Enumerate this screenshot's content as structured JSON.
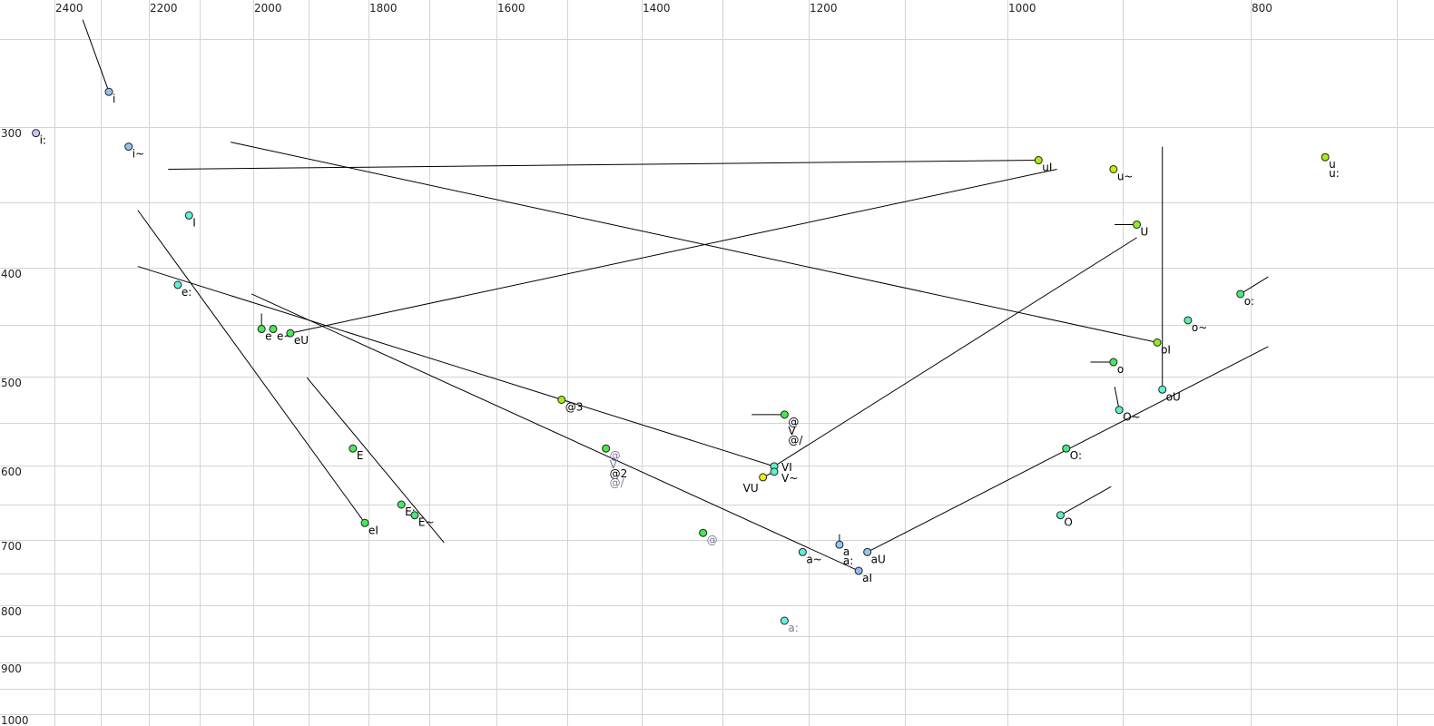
{
  "chart_data": {
    "type": "scatter",
    "title": "",
    "xlabel": "",
    "ylabel": "",
    "x_reversed": true,
    "y_reversed": true,
    "x_scale": "nonlinear (perceptual)",
    "grid": true,
    "xlim": [
      2450,
      690
    ],
    "ylim": [
      230,
      1010
    ],
    "x_ticks": [
      2400,
      2200,
      2000,
      1800,
      1600,
      1400,
      1200,
      1000,
      800
    ],
    "x_tick_labels": [
      "2400",
      "2200",
      "2000",
      "1800",
      "1600",
      "1400",
      "1200",
      "1000",
      "800"
    ],
    "x_grid": [
      2400,
      2300,
      2200,
      2100,
      2000,
      1900,
      1800,
      1700,
      1600,
      1500,
      1400,
      1300,
      1200,
      1100,
      1000,
      900,
      800,
      700
    ],
    "y_ticks": [
      300,
      400,
      500,
      600,
      700,
      800,
      900,
      1000
    ],
    "y_tick_labels": [
      "300",
      "400",
      "500",
      "600",
      "700",
      "800",
      "900",
      "1000"
    ],
    "y_grid": [
      250,
      300,
      350,
      400,
      450,
      500,
      550,
      600,
      650,
      700,
      750,
      800,
      850,
      900,
      950,
      1000
    ],
    "points": [
      {
        "x": 2283,
        "y": 280,
        "color": "#9cbff0",
        "labels": [
          {
            "text": "i",
            "color": "#000000"
          }
        ]
      },
      {
        "x": 2440,
        "y": 304,
        "color": "#c9c2f2",
        "labels": [
          {
            "text": "i:",
            "color": "#000000"
          }
        ]
      },
      {
        "x": 2242,
        "y": 313,
        "color": "#9cbff0",
        "labels": [
          {
            "text": "i~",
            "color": "#000000"
          }
        ]
      },
      {
        "x": 2121,
        "y": 360,
        "color": "#5ef0d8",
        "labels": [
          {
            "text": "I",
            "color": "#000000"
          }
        ]
      },
      {
        "x": 2143,
        "y": 415,
        "color": "#5ef0d8",
        "labels": [
          {
            "text": "e:",
            "color": "#000000"
          }
        ]
      },
      {
        "x": 1985,
        "y": 454,
        "color": "#48e858",
        "labels": [
          {
            "text": "e",
            "color": "#000000"
          }
        ]
      },
      {
        "x": 1964,
        "y": 454,
        "color": "#48e858",
        "labels": [
          {
            "text": "e~",
            "color": "#000000"
          }
        ]
      },
      {
        "x": 1933,
        "y": 458,
        "color": "#48e858",
        "labels": [
          {
            "text": "eU",
            "color": "#000000"
          }
        ]
      },
      {
        "x": 1826,
        "y": 580,
        "color": "#48e858",
        "labels": [
          {
            "text": "E",
            "color": "#000000"
          }
        ]
      },
      {
        "x": 1806,
        "y": 676,
        "color": "#48e858",
        "labels": [
          {
            "text": "eI",
            "color": "#000000"
          }
        ]
      },
      {
        "x": 1746,
        "y": 650,
        "color": "#48e868",
        "labels": [
          {
            "text": "E:",
            "color": "#000000"
          }
        ]
      },
      {
        "x": 1724,
        "y": 665,
        "color": "#48e880",
        "labels": [
          {
            "text": "E~",
            "color": "#000000"
          }
        ]
      },
      {
        "x": 1508,
        "y": 525,
        "color": "#a6ec10",
        "labels": [
          {
            "text": "@3",
            "color": "#000000"
          }
        ]
      },
      {
        "x": 1448,
        "y": 580,
        "color": "#48e848",
        "labels": [
          {
            "text": "@",
            "color": "#7a7a9a"
          },
          {
            "text": "V",
            "color": "#7a7a9a"
          },
          {
            "text": "@2",
            "color": "#000000"
          },
          {
            "text": "@/",
            "color": "#7a7a9a"
          }
        ]
      },
      {
        "x": 1324,
        "y": 690,
        "color": "#48e848",
        "labels": [
          {
            "text": "@",
            "color": "#7a7a9a"
          }
        ]
      },
      {
        "x": 1228,
        "y": 541,
        "color": "#48e848",
        "labels": [
          {
            "text": "@",
            "color": "#000000"
          },
          {
            "text": "V",
            "color": "#000000"
          },
          {
            "text": "@/",
            "color": "#000000"
          }
        ]
      },
      {
        "x": 1240,
        "y": 601,
        "color": "#5ef0c8",
        "labels": [
          {
            "text": "VI",
            "color": "#000000"
          }
        ]
      },
      {
        "x": 1240,
        "y": 608,
        "color": "#5ef0c8",
        "labels": [
          {
            "text": "V~",
            "color": "#000000"
          }
        ]
      },
      {
        "x": 1253,
        "y": 615,
        "color": "#f0f000",
        "labels": [
          {
            "text": "VU",
            "color": "#000000"
          }
        ]
      },
      {
        "x": 1207,
        "y": 718,
        "color": "#5ef0d0",
        "labels": [
          {
            "text": "a~",
            "color": "#000000"
          }
        ]
      },
      {
        "x": 1168,
        "y": 707,
        "color": "#90c8f0",
        "labels": [
          {
            "text": "a",
            "color": "#000000"
          },
          {
            "text": "a:",
            "color": "#000000"
          }
        ]
      },
      {
        "x": 1139,
        "y": 718,
        "color": "#90c8f0",
        "labels": [
          {
            "text": "aU",
            "color": "#000000"
          }
        ]
      },
      {
        "x": 1148,
        "y": 746,
        "color": "#90b8f0",
        "labels": [
          {
            "text": "aI",
            "color": "#000000"
          }
        ]
      },
      {
        "x": 1228,
        "y": 825,
        "color": "#6ef0e0",
        "labels": [
          {
            "text": "a:",
            "color": "#7a7a9a"
          }
        ]
      },
      {
        "x": 973,
        "y": 322,
        "color": "#a6ec10",
        "labels": [
          {
            "text": "uI",
            "color": "#000000"
          }
        ]
      },
      {
        "x": 908,
        "y": 328,
        "color": "#c0f000",
        "labels": [
          {
            "text": "u~",
            "color": "#000000"
          }
        ]
      },
      {
        "x": 889,
        "y": 367,
        "color": "#90ec20",
        "labels": [
          {
            "text": "U",
            "color": "#000000"
          }
        ]
      },
      {
        "x": 749,
        "y": 320,
        "color": "#a6ec10",
        "labels": [
          {
            "text": "u",
            "color": "#000000"
          },
          {
            "text": "u:",
            "color": "#000000"
          }
        ]
      },
      {
        "x": 808,
        "y": 423,
        "color": "#48e880",
        "labels": [
          {
            "text": "o:",
            "color": "#000000"
          }
        ]
      },
      {
        "x": 849,
        "y": 446,
        "color": "#5ef0a8",
        "labels": [
          {
            "text": "o~",
            "color": "#000000"
          }
        ]
      },
      {
        "x": 873,
        "y": 467,
        "color": "#90ec20",
        "labels": [
          {
            "text": "oI",
            "color": "#000000"
          }
        ]
      },
      {
        "x": 908,
        "y": 486,
        "color": "#48e858",
        "labels": [
          {
            "text": "o",
            "color": "#000000"
          }
        ]
      },
      {
        "x": 869,
        "y": 514,
        "color": "#5ef0d8",
        "labels": [
          {
            "text": "oU",
            "color": "#000000"
          }
        ]
      },
      {
        "x": 903,
        "y": 536,
        "color": "#5ef0c0",
        "labels": [
          {
            "text": "O~",
            "color": "#000000"
          }
        ]
      },
      {
        "x": 949,
        "y": 580,
        "color": "#48e880",
        "labels": [
          {
            "text": "O:",
            "color": "#000000"
          }
        ]
      },
      {
        "x": 954,
        "y": 665,
        "color": "#5ef0c0",
        "labels": [
          {
            "text": "O",
            "color": "#000000"
          }
        ]
      }
    ],
    "trajectories": [
      [
        [
          2339,
          239
        ],
        [
          2283,
          280
        ]
      ],
      [
        [
          2162,
          328
        ],
        [
          973,
          322
        ]
      ],
      [
        [
          2042,
          310
        ],
        [
          873,
          467
        ]
      ],
      [
        [
          1933,
          458
        ],
        [
          957,
          328
        ]
      ],
      [
        [
          2223,
          356
        ],
        [
          1806,
          676
        ]
      ],
      [
        [
          2223,
          399
        ],
        [
          1240,
          601
        ]
      ],
      [
        [
          2003,
          423
        ],
        [
          1148,
          746
        ]
      ],
      [
        [
          1903,
          501
        ],
        [
          1678,
          704
        ]
      ],
      [
        [
          1985,
          440
        ],
        [
          1985,
          454
        ]
      ],
      [
        [
          1266,
          541
        ],
        [
          1228,
          541
        ]
      ],
      [
        [
          1240,
          601
        ],
        [
          889,
          377
        ]
      ],
      [
        [
          907,
          367
        ],
        [
          889,
          367
        ]
      ],
      [
        [
          869,
          313
        ],
        [
          869,
          514
        ]
      ],
      [
        [
          1139,
          718
        ],
        [
          788,
          471
        ]
      ],
      [
        [
          808,
          423
        ],
        [
          788,
          408
        ]
      ],
      [
        [
          928,
          486
        ],
        [
          908,
          486
        ]
      ],
      [
        [
          907,
          511
        ],
        [
          903,
          536
        ]
      ],
      [
        [
          954,
          665
        ],
        [
          910,
          627
        ]
      ],
      [
        [
          1168,
          692
        ],
        [
          1168,
          707
        ]
      ],
      [
        [
          1253,
          615
        ],
        [
          1240,
          608
        ]
      ]
    ]
  }
}
